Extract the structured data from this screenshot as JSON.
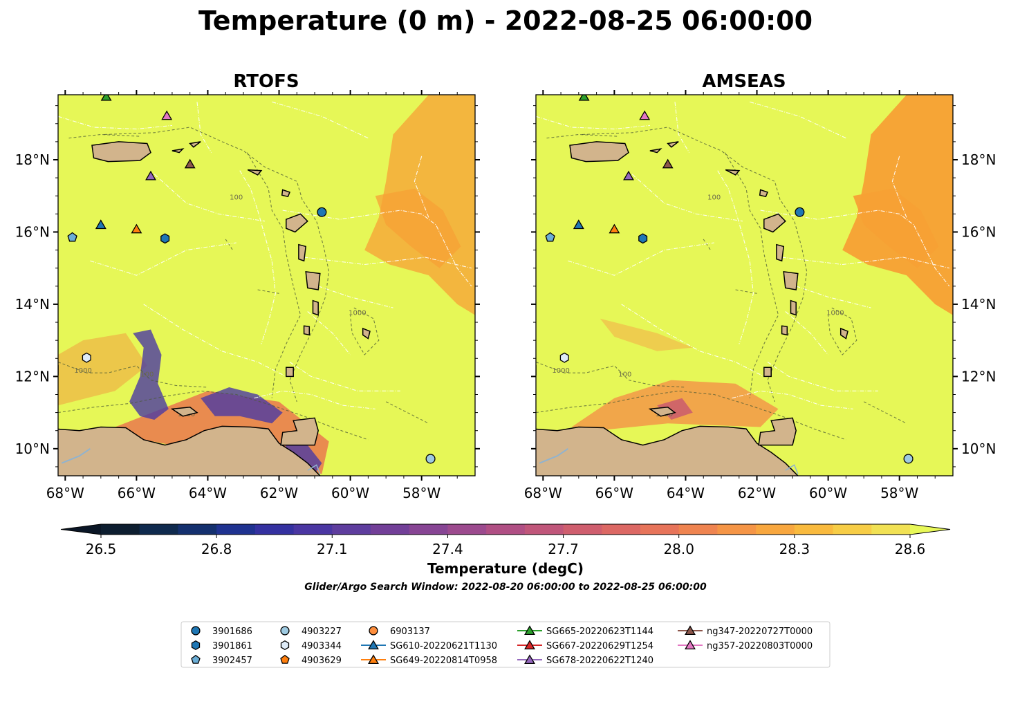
{
  "figure": {
    "title": "Temperature (0 m) - 2022-08-25 06:00:00",
    "subtitle": "Glider/Argo Search Window: 2022-08-20 06:00:00 to 2022-08-25 06:00:00"
  },
  "panels": [
    {
      "title": "RTOFS",
      "lat_labels_side": "left"
    },
    {
      "title": "AMSEAS",
      "lat_labels_side": "right"
    }
  ],
  "axes": {
    "lon_range": [
      -68.2,
      -56.5
    ],
    "lat_range": [
      9.25,
      19.8
    ],
    "lon_ticks": [
      {
        "v": -68,
        "label": "68°W"
      },
      {
        "v": -66,
        "label": "66°W"
      },
      {
        "v": -64,
        "label": "64°W"
      },
      {
        "v": -62,
        "label": "62°W"
      },
      {
        "v": -60,
        "label": "60°W"
      },
      {
        "v": -58,
        "label": "58°W"
      }
    ],
    "lat_ticks": [
      {
        "v": 10,
        "label": "10°N"
      },
      {
        "v": 12,
        "label": "12°N"
      },
      {
        "v": 14,
        "label": "14°N"
      },
      {
        "v": 16,
        "label": "16°N"
      },
      {
        "v": 18,
        "label": "18°N"
      }
    ]
  },
  "colorbar": {
    "label": "Temperature (degC)",
    "ticks": [
      "26.5",
      "26.8",
      "27.1",
      "27.4",
      "27.7",
      "28.0",
      "28.3",
      "28.6"
    ],
    "min": 26.5,
    "max": 28.6,
    "step": 0.075,
    "colors": [
      "#0d1e30",
      "#0f2a4e",
      "#14306e",
      "#1f3290",
      "#3431a0",
      "#4a36a2",
      "#5e3d9e",
      "#723f98",
      "#874594",
      "#9c4a8e",
      "#b04f84",
      "#c0567a",
      "#cf5e6e",
      "#dc6864",
      "#e7745a",
      "#ef8450",
      "#f59546",
      "#f8a73f",
      "#f9ba3e",
      "#f7cd46",
      "#f1e154"
    ],
    "under_color": "#0a1626",
    "over_color": "#e8f858"
  },
  "map": {
    "sea_color": "#e6f757",
    "warm_color": "#f7a035",
    "land_color": "#d2b48c",
    "contour_labels": [
      "100",
      "1000"
    ]
  },
  "legend": {
    "columns": [
      [
        {
          "label": "3901686",
          "marker": "circle",
          "color": "#1f77b4"
        },
        {
          "label": "3901861",
          "marker": "hexagon",
          "color": "#1f77b4"
        },
        {
          "label": "3902457",
          "marker": "pentagon",
          "color": "#6baed6"
        }
      ],
      [
        {
          "label": "4903227",
          "marker": "circle",
          "color": "#9ecae1"
        },
        {
          "label": "4903344",
          "marker": "hexagon",
          "color": "#deebf7"
        },
        {
          "label": "4903629",
          "marker": "pentagon",
          "color": "#ff7f0e"
        }
      ],
      [
        {
          "label": "6903137",
          "marker": "circle",
          "color": "#fd8d3c"
        },
        {
          "label": "SG610-20220621T1130",
          "marker": "triangle",
          "color": "#1f77b4",
          "line": true
        },
        {
          "label": "SG649-20220814T0958",
          "marker": "triangle",
          "color": "#ff7f0e",
          "line": true
        }
      ],
      [
        {
          "label": "SG665-20220623T1144",
          "marker": "triangle",
          "color": "#2ca02c",
          "line": true
        },
        {
          "label": "SG667-20220629T1254",
          "marker": "triangle",
          "color": "#d62728",
          "line": true
        },
        {
          "label": "SG678-20220622T1240",
          "marker": "triangle",
          "color": "#9467bd",
          "line": true
        }
      ],
      [
        {
          "label": "ng347-20220727T0000",
          "marker": "triangle",
          "color": "#8c564b",
          "line": true
        },
        {
          "label": "ng357-20220803T0000",
          "marker": "triangle",
          "color": "#e377c2",
          "line": true
        }
      ]
    ]
  },
  "platforms": [
    {
      "id": "3901686",
      "lon": -60.8,
      "lat": 16.55,
      "marker": "circle",
      "color": "#1f77b4"
    },
    {
      "id": "3901861",
      "lon": -65.2,
      "lat": 15.82,
      "marker": "hexagon",
      "color": "#1f77b4"
    },
    {
      "id": "3902457",
      "lon": -67.8,
      "lat": 15.85,
      "marker": "pentagon",
      "color": "#6baed6"
    },
    {
      "id": "4903227",
      "lon": -57.75,
      "lat": 9.72,
      "marker": "circle",
      "color": "#9ecae1"
    },
    {
      "id": "4903344",
      "lon": -67.4,
      "lat": 12.52,
      "marker": "hexagon",
      "color": "#deebf7"
    },
    {
      "id": "SG610-20220621T1130",
      "lon": -67.0,
      "lat": 16.2,
      "marker": "triangle",
      "color": "#1f77b4"
    },
    {
      "id": "SG649-20220814T0958",
      "lon": -66.0,
      "lat": 16.08,
      "marker": "triangle",
      "color": "#ff7f0e"
    },
    {
      "id": "SG665-20220623T1144",
      "lon": -66.85,
      "lat": 19.75,
      "marker": "triangle",
      "color": "#2ca02c"
    },
    {
      "id": "SG678-20220622T1240",
      "lon": -65.6,
      "lat": 17.55,
      "marker": "triangle",
      "color": "#9467bd"
    },
    {
      "id": "ng347-20220727T0000",
      "lon": -64.5,
      "lat": 17.88,
      "marker": "triangle",
      "color": "#8c564b"
    },
    {
      "id": "ng357-20220803T0000",
      "lon": -65.15,
      "lat": 19.22,
      "marker": "triangle",
      "color": "#e377c2"
    }
  ]
}
